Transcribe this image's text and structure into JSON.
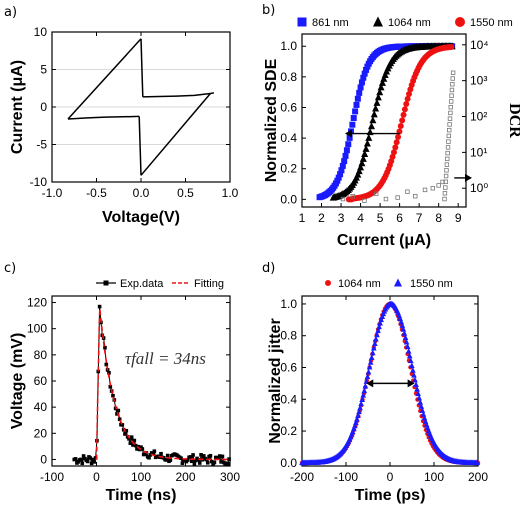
{
  "panels": {
    "a": "a)",
    "b": "b)",
    "c": "c)",
    "d": "d)"
  },
  "chart_data": [
    {
      "id": "a",
      "type": "line",
      "xlabel": "Voltage(V)",
      "ylabel": "Current (μA)",
      "xlim": [
        -1.0,
        1.0
      ],
      "ylim": [
        -10,
        10
      ],
      "xticks": [
        "-1.0",
        "-0.5",
        "0.0",
        "0.5",
        "1.0"
      ],
      "yticks": [
        "-10",
        "-5",
        "0",
        "5",
        "10"
      ],
      "grid": true,
      "series": [
        {
          "x": [
            -0.82,
            -0.6,
            -0.4,
            -0.2,
            -0.02
          ],
          "y": [
            -1.6,
            -1.45,
            -1.35,
            -1.3,
            -1.25
          ]
        },
        {
          "x": [
            -0.02,
            0.0
          ],
          "y": [
            -1.25,
            -9.1
          ]
        },
        {
          "x": [
            0.0,
            0.78
          ],
          "y": [
            -9.1,
            1.8
          ]
        },
        {
          "x": [
            0.78,
            0.82
          ],
          "y": [
            1.8,
            1.9
          ]
        },
        {
          "x": [
            0.78,
            0.6,
            0.4,
            0.2,
            0.02
          ],
          "y": [
            1.8,
            1.55,
            1.45,
            1.4,
            1.35
          ]
        },
        {
          "x": [
            0.02,
            0.0
          ],
          "y": [
            1.35,
            9.1
          ]
        },
        {
          "x": [
            0.0,
            -0.82
          ],
          "y": [
            9.1,
            -1.6
          ]
        }
      ]
    },
    {
      "id": "b",
      "type": "scatter",
      "xlabel": "Current (μA)",
      "ylabel": "Normalized SDE",
      "ylabel_right": "DCR",
      "xlim": [
        1,
        9.4
      ],
      "ylim": [
        -0.05,
        1.08
      ],
      "xticks": [
        "1",
        "2",
        "3",
        "4",
        "5",
        "6",
        "7",
        "8",
        "9"
      ],
      "yticks": [
        "0.0",
        "0.2",
        "0.4",
        "0.6",
        "0.8",
        "1.0"
      ],
      "y2_scale": "log",
      "y2lim": [
        0.3,
        20000
      ],
      "y2ticks": [
        "10⁰",
        "10¹",
        "10²",
        "10³",
        "10⁴"
      ],
      "legend_position": "top",
      "series": [
        {
          "name": "861 nm",
          "color": "#1a1aff",
          "marker": "square",
          "sigmoid": {
            "x0": 3.6,
            "s": 0.4,
            "xmin": 1.9,
            "xmax": 8.7
          }
        },
        {
          "name": "1064 nm",
          "color": "#000000",
          "marker": "triangle",
          "sigmoid": {
            "x0": 4.6,
            "s": 0.45,
            "xmin": 2.6,
            "xmax": 8.7
          }
        },
        {
          "name": "1550 nm",
          "color": "#ee1111",
          "marker": "circle",
          "sigmoid": {
            "x0": 6.1,
            "s": 0.48,
            "xmin": 3.4,
            "xmax": 8.7
          }
        },
        {
          "name": "DCR",
          "color": "#777777",
          "marker": "open-square",
          "dcr": {
            "x0": 8.3,
            "xmax": 8.75,
            "k": 2.0
          }
        }
      ]
    },
    {
      "id": "c",
      "type": "line",
      "xlabel": "Time (ns)",
      "ylabel": "Voltage (mV)",
      "xlim": [
        -100,
        300
      ],
      "ylim": [
        -5,
        125
      ],
      "xticks": [
        "-100",
        "0",
        "100",
        "200",
        "300"
      ],
      "yticks": [
        "0",
        "20",
        "40",
        "60",
        "80",
        "100",
        "120"
      ],
      "legend_position": "top",
      "annotation": "τfall = 34ns",
      "series": [
        {
          "name": "Exp.data",
          "color": "#000000",
          "marker": "square",
          "pulse": {
            "t0": 0,
            "tr": 7,
            "peak": 117,
            "tau": 34,
            "tmin": -50,
            "tmax": 300
          }
        },
        {
          "name": "Fitting",
          "color": "#ee1111",
          "style": "dashed",
          "pulse": {
            "t0": 0,
            "tr": 7,
            "peak": 117,
            "tau": 34,
            "tmin": 0,
            "tmax": 300
          }
        }
      ]
    },
    {
      "id": "d",
      "type": "scatter",
      "xlabel": "Time (ps)",
      "ylabel": "Normalized jitter",
      "xlim": [
        -200,
        200
      ],
      "ylim": [
        -0.02,
        1.05
      ],
      "xticks": [
        "-200",
        "-100",
        "0",
        "100",
        "200"
      ],
      "yticks": [
        "0.0",
        "0.2",
        "0.4",
        "0.6",
        "0.8",
        "1.0"
      ],
      "legend_position": "top",
      "series": [
        {
          "name": "1064 nm",
          "color": "#ee1111",
          "marker": "circle",
          "gauss": {
            "mu": 0,
            "sigma": 46,
            "xmin": -200,
            "xmax": 200
          }
        },
        {
          "name": "1550 nm",
          "color": "#1a1aff",
          "marker": "triangle",
          "gauss": {
            "mu": 2,
            "sigma": 48,
            "xmin": -200,
            "xmax": 200
          }
        }
      ]
    }
  ]
}
